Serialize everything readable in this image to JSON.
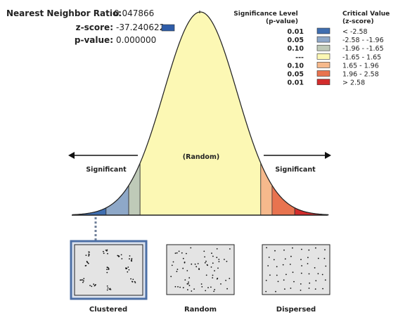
{
  "stats": {
    "ratio_label": "Nearest Neighbor Ratio:",
    "ratio_value": "0.047866",
    "z_label": "z-score:",
    "z_value": "-37.240622",
    "p_label": "p-value:",
    "p_value": "0.000000",
    "indicator_color": "#2e5ca8"
  },
  "legend": {
    "header_sig_line1": "Significance Level",
    "header_sig_line2": "(p-value)",
    "header_crit_line1": "Critical Value",
    "header_crit_line2": "(z-score)",
    "rows": [
      {
        "p": "0.01",
        "z": "< -2.58",
        "color": "#3f6eb0"
      },
      {
        "p": "0.05",
        "z": "-2.58 - -1.96",
        "color": "#8ea8c8"
      },
      {
        "p": "0.10",
        "z": "-1.96 - -1.65",
        "color": "#bfcab8"
      },
      {
        "p": "---",
        "z": "-1.65 - 1.65",
        "color": "#fcf8b4"
      },
      {
        "p": "0.10",
        "z": "1.65 - 1.96",
        "color": "#f6b98c"
      },
      {
        "p": "0.05",
        "z": "1.96 - 2.58",
        "color": "#e8734f"
      },
      {
        "p": "0.01",
        "z": "> 2.58",
        "color": "#d22c2c"
      }
    ]
  },
  "chart_data": {
    "type": "area",
    "title": "",
    "xlabel": "",
    "ylabel": "",
    "distribution": "standard normal",
    "xlim": [
      -3.5,
      3.5
    ],
    "zones": [
      {
        "from": -3.5,
        "to": -2.58,
        "color": "#3f6eb0"
      },
      {
        "from": -2.58,
        "to": -1.96,
        "color": "#8ea8c8"
      },
      {
        "from": -1.96,
        "to": -1.65,
        "color": "#bfcab8"
      },
      {
        "from": -1.65,
        "to": 1.65,
        "color": "#fcf8b4"
      },
      {
        "from": 1.65,
        "to": 1.96,
        "color": "#f6b98c"
      },
      {
        "from": 1.96,
        "to": 2.58,
        "color": "#e8734f"
      },
      {
        "from": 2.58,
        "to": 3.5,
        "color": "#d22c2c"
      }
    ],
    "annotations": {
      "center": "(Random)",
      "left": "Significant",
      "right": "Significant"
    },
    "panels": [
      {
        "label": "Clustered",
        "selected": true
      },
      {
        "label": "Random",
        "selected": false
      },
      {
        "label": "Dispersed",
        "selected": false
      }
    ]
  }
}
